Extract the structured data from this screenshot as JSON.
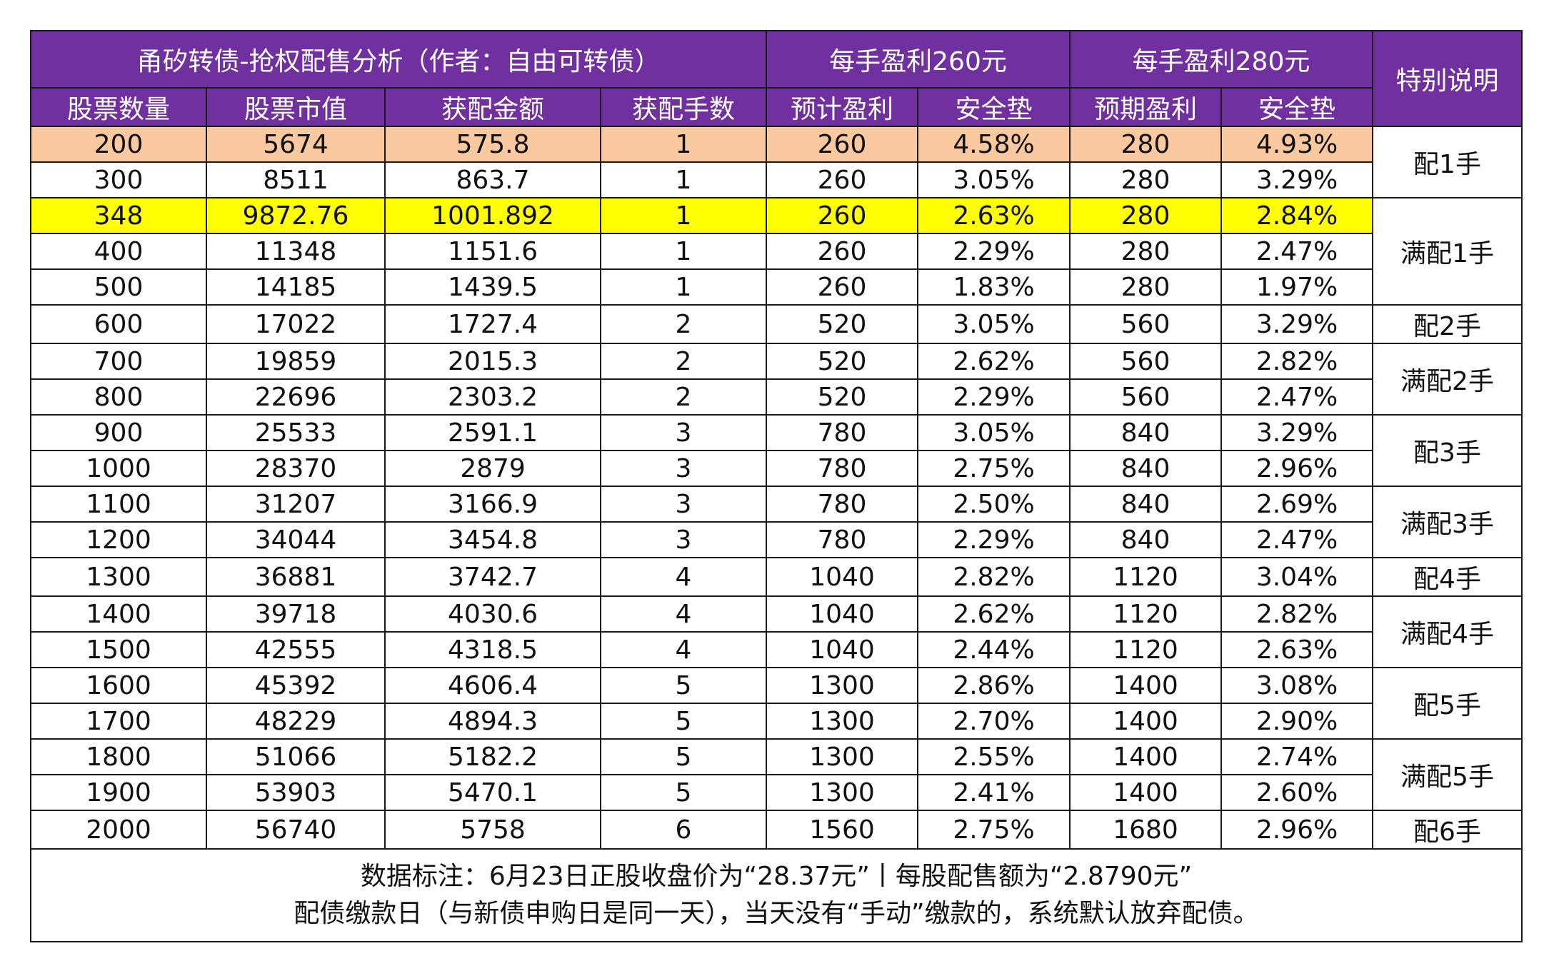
{
  "header": {
    "title": "甬矽转债-抢权配售分析（作者：自由可转债）",
    "group_260": "每手盈利260元",
    "group_280": "每手盈利280元",
    "note_col": "特别说明"
  },
  "columns": [
    "股票数量",
    "股票市值",
    "获配金额",
    "获配手数",
    "预计盈利",
    "安全垫",
    "预期盈利",
    "安全垫"
  ],
  "rows": [
    [
      "200",
      "5674",
      "575.8",
      "1",
      "260",
      "4.58%",
      "280",
      "4.93%"
    ],
    [
      "300",
      "8511",
      "863.7",
      "1",
      "260",
      "3.05%",
      "280",
      "3.29%"
    ],
    [
      "348",
      "9872.76",
      "1001.892",
      "1",
      "260",
      "2.63%",
      "280",
      "2.84%"
    ],
    [
      "400",
      "11348",
      "1151.6",
      "1",
      "260",
      "2.29%",
      "280",
      "2.47%"
    ],
    [
      "500",
      "14185",
      "1439.5",
      "1",
      "260",
      "1.83%",
      "280",
      "1.97%"
    ],
    [
      "600",
      "17022",
      "1727.4",
      "2",
      "520",
      "3.05%",
      "560",
      "3.29%"
    ],
    [
      "700",
      "19859",
      "2015.3",
      "2",
      "520",
      "2.62%",
      "560",
      "2.82%"
    ],
    [
      "800",
      "22696",
      "2303.2",
      "2",
      "520",
      "2.29%",
      "560",
      "2.47%"
    ],
    [
      "900",
      "25533",
      "2591.1",
      "3",
      "780",
      "3.05%",
      "840",
      "3.29%"
    ],
    [
      "1000",
      "28370",
      "2879",
      "3",
      "780",
      "2.75%",
      "840",
      "2.96%"
    ],
    [
      "1100",
      "31207",
      "3166.9",
      "3",
      "780",
      "2.50%",
      "840",
      "2.69%"
    ],
    [
      "1200",
      "34044",
      "3454.8",
      "3",
      "780",
      "2.29%",
      "840",
      "2.47%"
    ],
    [
      "1300",
      "36881",
      "3742.7",
      "4",
      "1040",
      "2.82%",
      "1120",
      "3.04%"
    ],
    [
      "1400",
      "39718",
      "4030.6",
      "4",
      "1040",
      "2.62%",
      "1120",
      "2.82%"
    ],
    [
      "1500",
      "42555",
      "4318.5",
      "4",
      "1040",
      "2.44%",
      "1120",
      "2.63%"
    ],
    [
      "1600",
      "45392",
      "4606.4",
      "5",
      "1300",
      "2.86%",
      "1400",
      "3.08%"
    ],
    [
      "1700",
      "48229",
      "4894.3",
      "5",
      "1300",
      "2.70%",
      "1400",
      "2.90%"
    ],
    [
      "1800",
      "51066",
      "5182.2",
      "5",
      "1300",
      "2.55%",
      "1400",
      "2.74%"
    ],
    [
      "1900",
      "53903",
      "5470.1",
      "5",
      "1300",
      "2.41%",
      "1400",
      "2.60%"
    ],
    [
      "2000",
      "56740",
      "5758",
      "6",
      "1560",
      "2.75%",
      "1680",
      "2.96%"
    ]
  ],
  "notes": [
    "配1手",
    "满配1手",
    "配2手",
    "满配2手",
    "配3手",
    "满配3手",
    "配4手",
    "满配4手",
    "配5手",
    "满配5手",
    "配6手"
  ],
  "footer": {
    "line1": "数据标注：6月23日正股收盘价为“28.37元”丨每股配售额为“2.8790元”",
    "line2": "配债缴款日（与新债申购日是同一天），当天没有“手动”缴款的，系统默认放弃配债。"
  },
  "colors": {
    "header_bg": "#7030a0",
    "highlight_orange": "#fbc9a0",
    "highlight_yellow": "#ffff00"
  }
}
